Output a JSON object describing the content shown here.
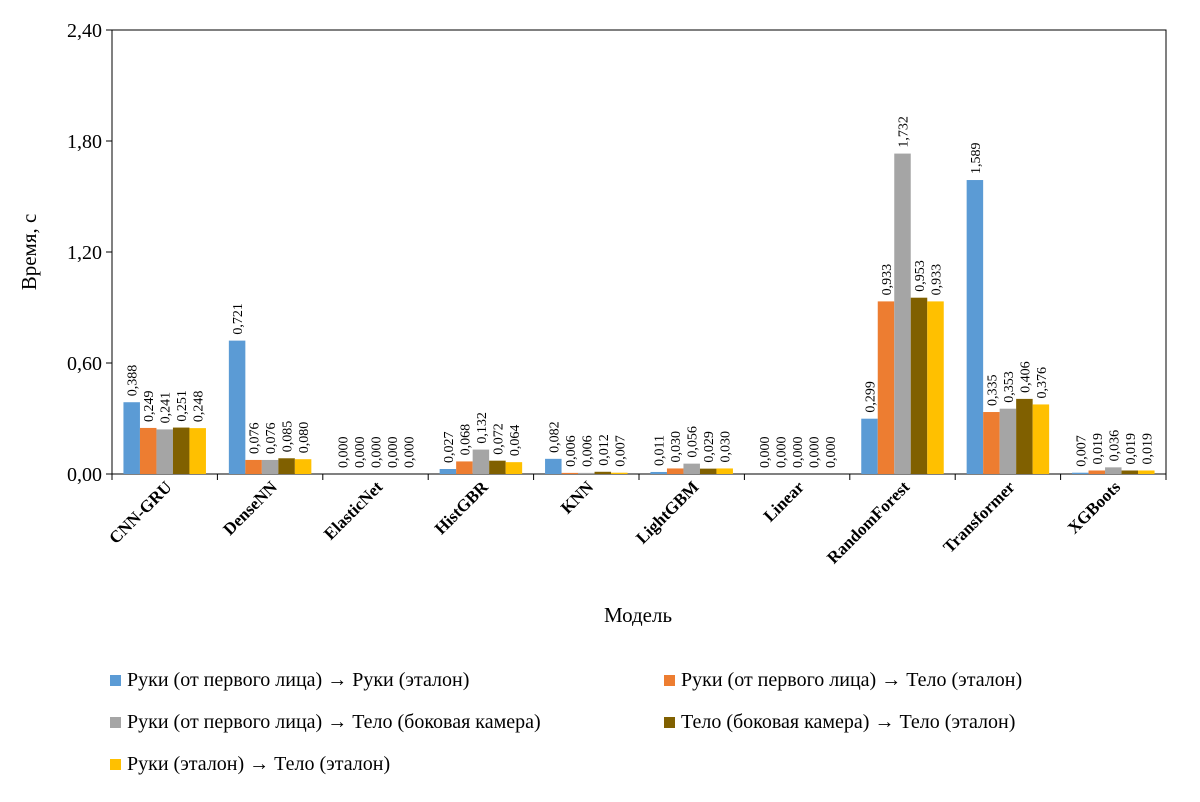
{
  "chart_data": {
    "type": "bar",
    "categories": [
      "CNN-GRU",
      "DenseNN",
      "ElasticNet",
      "HistGBR",
      "KNN",
      "LightGBM",
      "Linear",
      "RandomForest",
      "Transformer",
      "XGBoots"
    ],
    "series": [
      {
        "name": "Руки (от первого лица) → Руки (эталон)",
        "color": "#5b9bd5",
        "values": [
          0.388,
          0.721,
          0.0,
          0.027,
          0.082,
          0.011,
          0.0,
          0.299,
          1.589,
          0.007
        ],
        "labels": [
          "0,388",
          "0,721",
          "0,000",
          "0,027",
          "0,082",
          "0,011",
          "0,000",
          "0,299",
          "1,589",
          "0,007"
        ]
      },
      {
        "name": "Руки (от первого лица) → Тело (эталон)",
        "color": "#ed7d31",
        "values": [
          0.249,
          0.076,
          0.0,
          0.068,
          0.006,
          0.03,
          0.0,
          0.933,
          0.335,
          0.019
        ],
        "labels": [
          "0,249",
          "0,076",
          "0,000",
          "0,068",
          "0,006",
          "0,030",
          "0,000",
          "0,933",
          "0,335",
          "0,019"
        ]
      },
      {
        "name": "Руки (от первого лица) → Тело (боковая камера)",
        "color": "#a5a5a5",
        "values": [
          0.241,
          0.076,
          0.0,
          0.132,
          0.006,
          0.056,
          0.0,
          1.732,
          0.353,
          0.036
        ],
        "labels": [
          "0,241",
          "0,076",
          "0,000",
          "0,132",
          "0,006",
          "0,056",
          "0,000",
          "1,732",
          "0,353",
          "0,036"
        ]
      },
      {
        "name": "Тело (боковая камера) → Тело (эталон)",
        "color": "#806000",
        "values": [
          0.251,
          0.085,
          0.0,
          0.072,
          0.012,
          0.029,
          0.0,
          0.953,
          0.406,
          0.019
        ],
        "labels": [
          "0,251",
          "0,085",
          "0,000",
          "0,072",
          "0,012",
          "0,029",
          "0,000",
          "0,953",
          "0,406",
          "0,019"
        ]
      },
      {
        "name": "Руки (эталон) → Тело (эталон)",
        "color": "#ffc000",
        "values": [
          0.248,
          0.08,
          0.0,
          0.064,
          0.007,
          0.03,
          0.0,
          0.933,
          0.376,
          0.019
        ],
        "labels": [
          "0,248",
          "0,080",
          "0,000",
          "0,064",
          "0,007",
          "0,030",
          "0,000",
          "0,933",
          "0,376",
          "0,019"
        ]
      }
    ],
    "xlabel": "Модель",
    "ylabel": "Время, с",
    "ylim": [
      0,
      2.4
    ],
    "yticks": [
      0,
      0.6,
      1.2,
      1.8,
      2.4
    ],
    "ytick_labels": [
      "0,00",
      "0,60",
      "1,20",
      "1,80",
      "2,40"
    ],
    "grid": false,
    "legend_position": "bottom"
  }
}
